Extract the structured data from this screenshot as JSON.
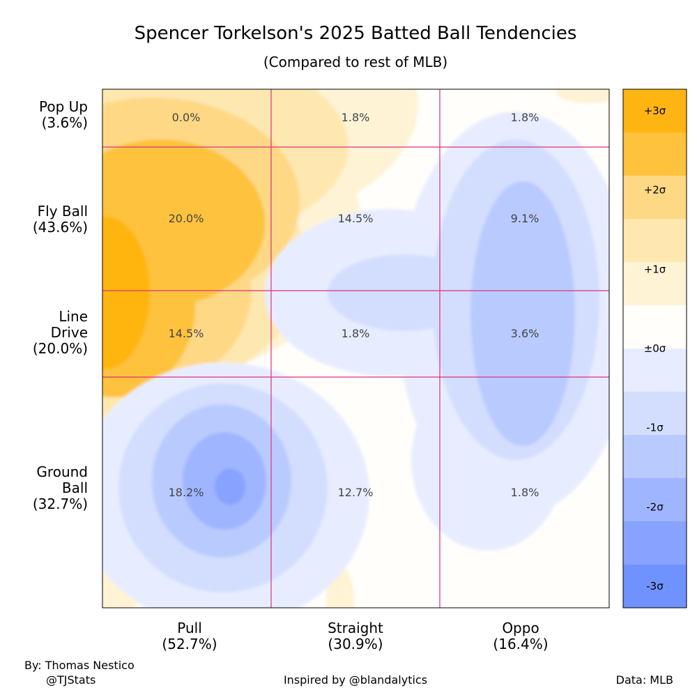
{
  "chart_data": {
    "type": "heatmap",
    "title": "Spencer Torkelson's 2025 Batted Ball Tendencies",
    "subtitle": "(Compared to rest of MLB)",
    "columns": [
      {
        "name": "Pull",
        "pct": "(52.7%)"
      },
      {
        "name": "Straight",
        "pct": "(30.9%)"
      },
      {
        "name": "Oppo",
        "pct": "(16.4%)"
      }
    ],
    "rows": [
      {
        "name_lines": [
          "Pop Up"
        ],
        "pct": "(3.6%)"
      },
      {
        "name_lines": [
          "Fly Ball"
        ],
        "pct": "(43.6%)"
      },
      {
        "name_lines": [
          "Line",
          "Drive"
        ],
        "pct": "(20.0%)"
      },
      {
        "name_lines": [
          "Ground",
          "Ball"
        ],
        "pct": "(32.7%)"
      }
    ],
    "cells": [
      [
        "0.0%",
        "1.8%",
        "1.8%"
      ],
      [
        "20.0%",
        "14.5%",
        "9.1%"
      ],
      [
        "14.5%",
        "1.8%",
        "3.6%"
      ],
      [
        "18.2%",
        "12.7%",
        "1.8%"
      ]
    ],
    "colorbar": {
      "ticks": [
        "+3σ",
        "+2σ",
        "+1σ",
        "±0σ",
        "-1σ",
        "-2σ",
        "-3σ"
      ],
      "range": [
        -3,
        3
      ],
      "colors": [
        "#ffb511",
        "#ffc23c",
        "#ffd885",
        "#ffe7b0",
        "#fff3d6",
        "#fffefa",
        "#e7edff",
        "#d3defe",
        "#b9caff",
        "#9fb5ff",
        "#87a3ff",
        "#6f92ff"
      ]
    },
    "accent_color": "#e0307a"
  },
  "footer": {
    "by_line": "By: Thomas Nestico",
    "handle": "@TJStats",
    "inspired": "Inspired by @blandalytics",
    "source": "Data: MLB"
  }
}
